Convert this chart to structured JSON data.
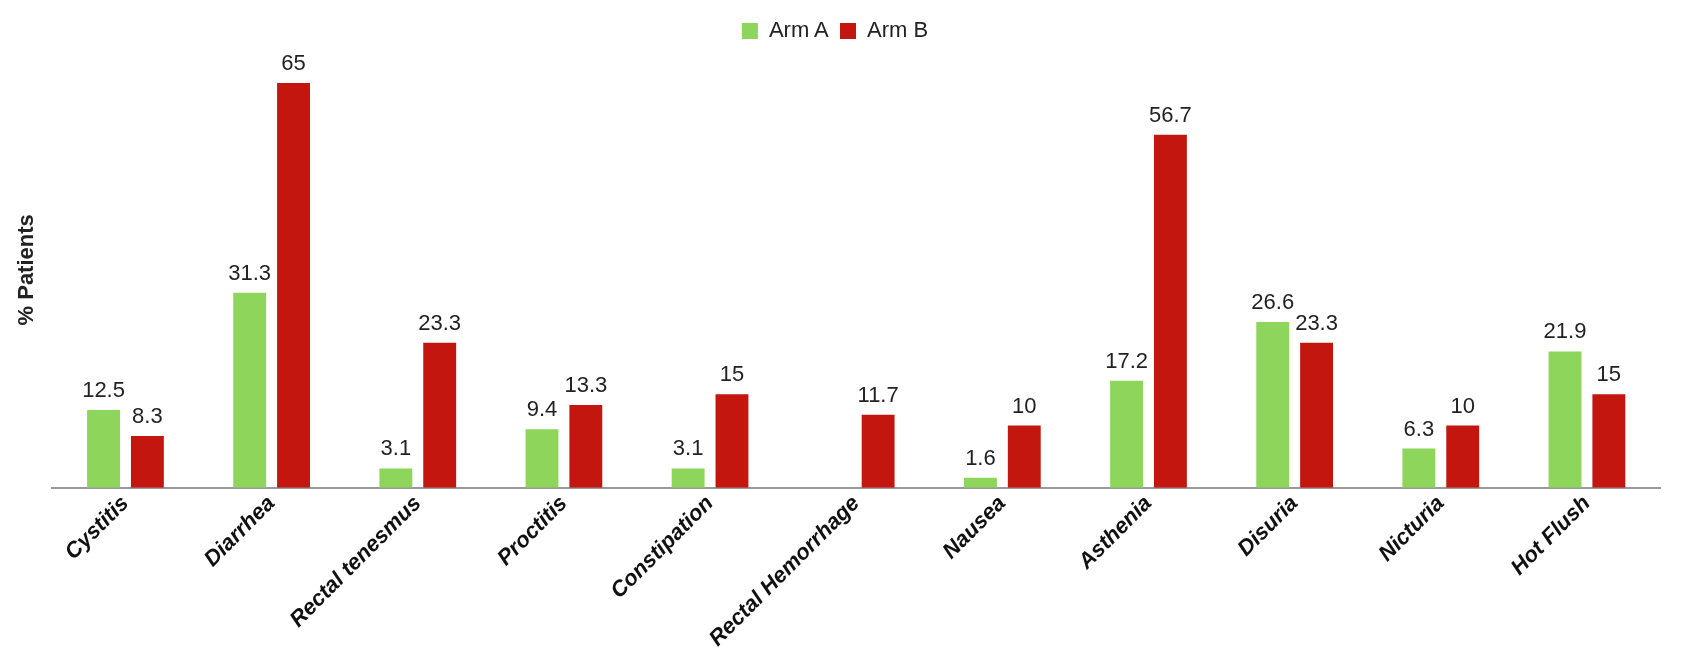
{
  "chart_data": {
    "type": "bar",
    "ylabel": "% Patients",
    "categories": [
      "Cystitis",
      "Diarrhea",
      "Rectal tenesmus",
      "Proctitis",
      "Constipation",
      "Rectal Hemorrhage",
      "Nausea",
      "Asthenia",
      "Disuria",
      "Nicturia",
      "Hot Flush"
    ],
    "series": [
      {
        "name": "Arm A",
        "color": "#8ed55c",
        "values": [
          12.5,
          31.3,
          3.1,
          9.4,
          3.1,
          null,
          1.6,
          17.2,
          26.6,
          6.3,
          21.9
        ]
      },
      {
        "name": "Arm B",
        "color": "#c3160f",
        "values": [
          8.3,
          65,
          23.3,
          13.3,
          15,
          11.7,
          10,
          56.7,
          23.3,
          10,
          15
        ]
      }
    ],
    "data_labels": true,
    "grid": false,
    "legend": "top"
  }
}
